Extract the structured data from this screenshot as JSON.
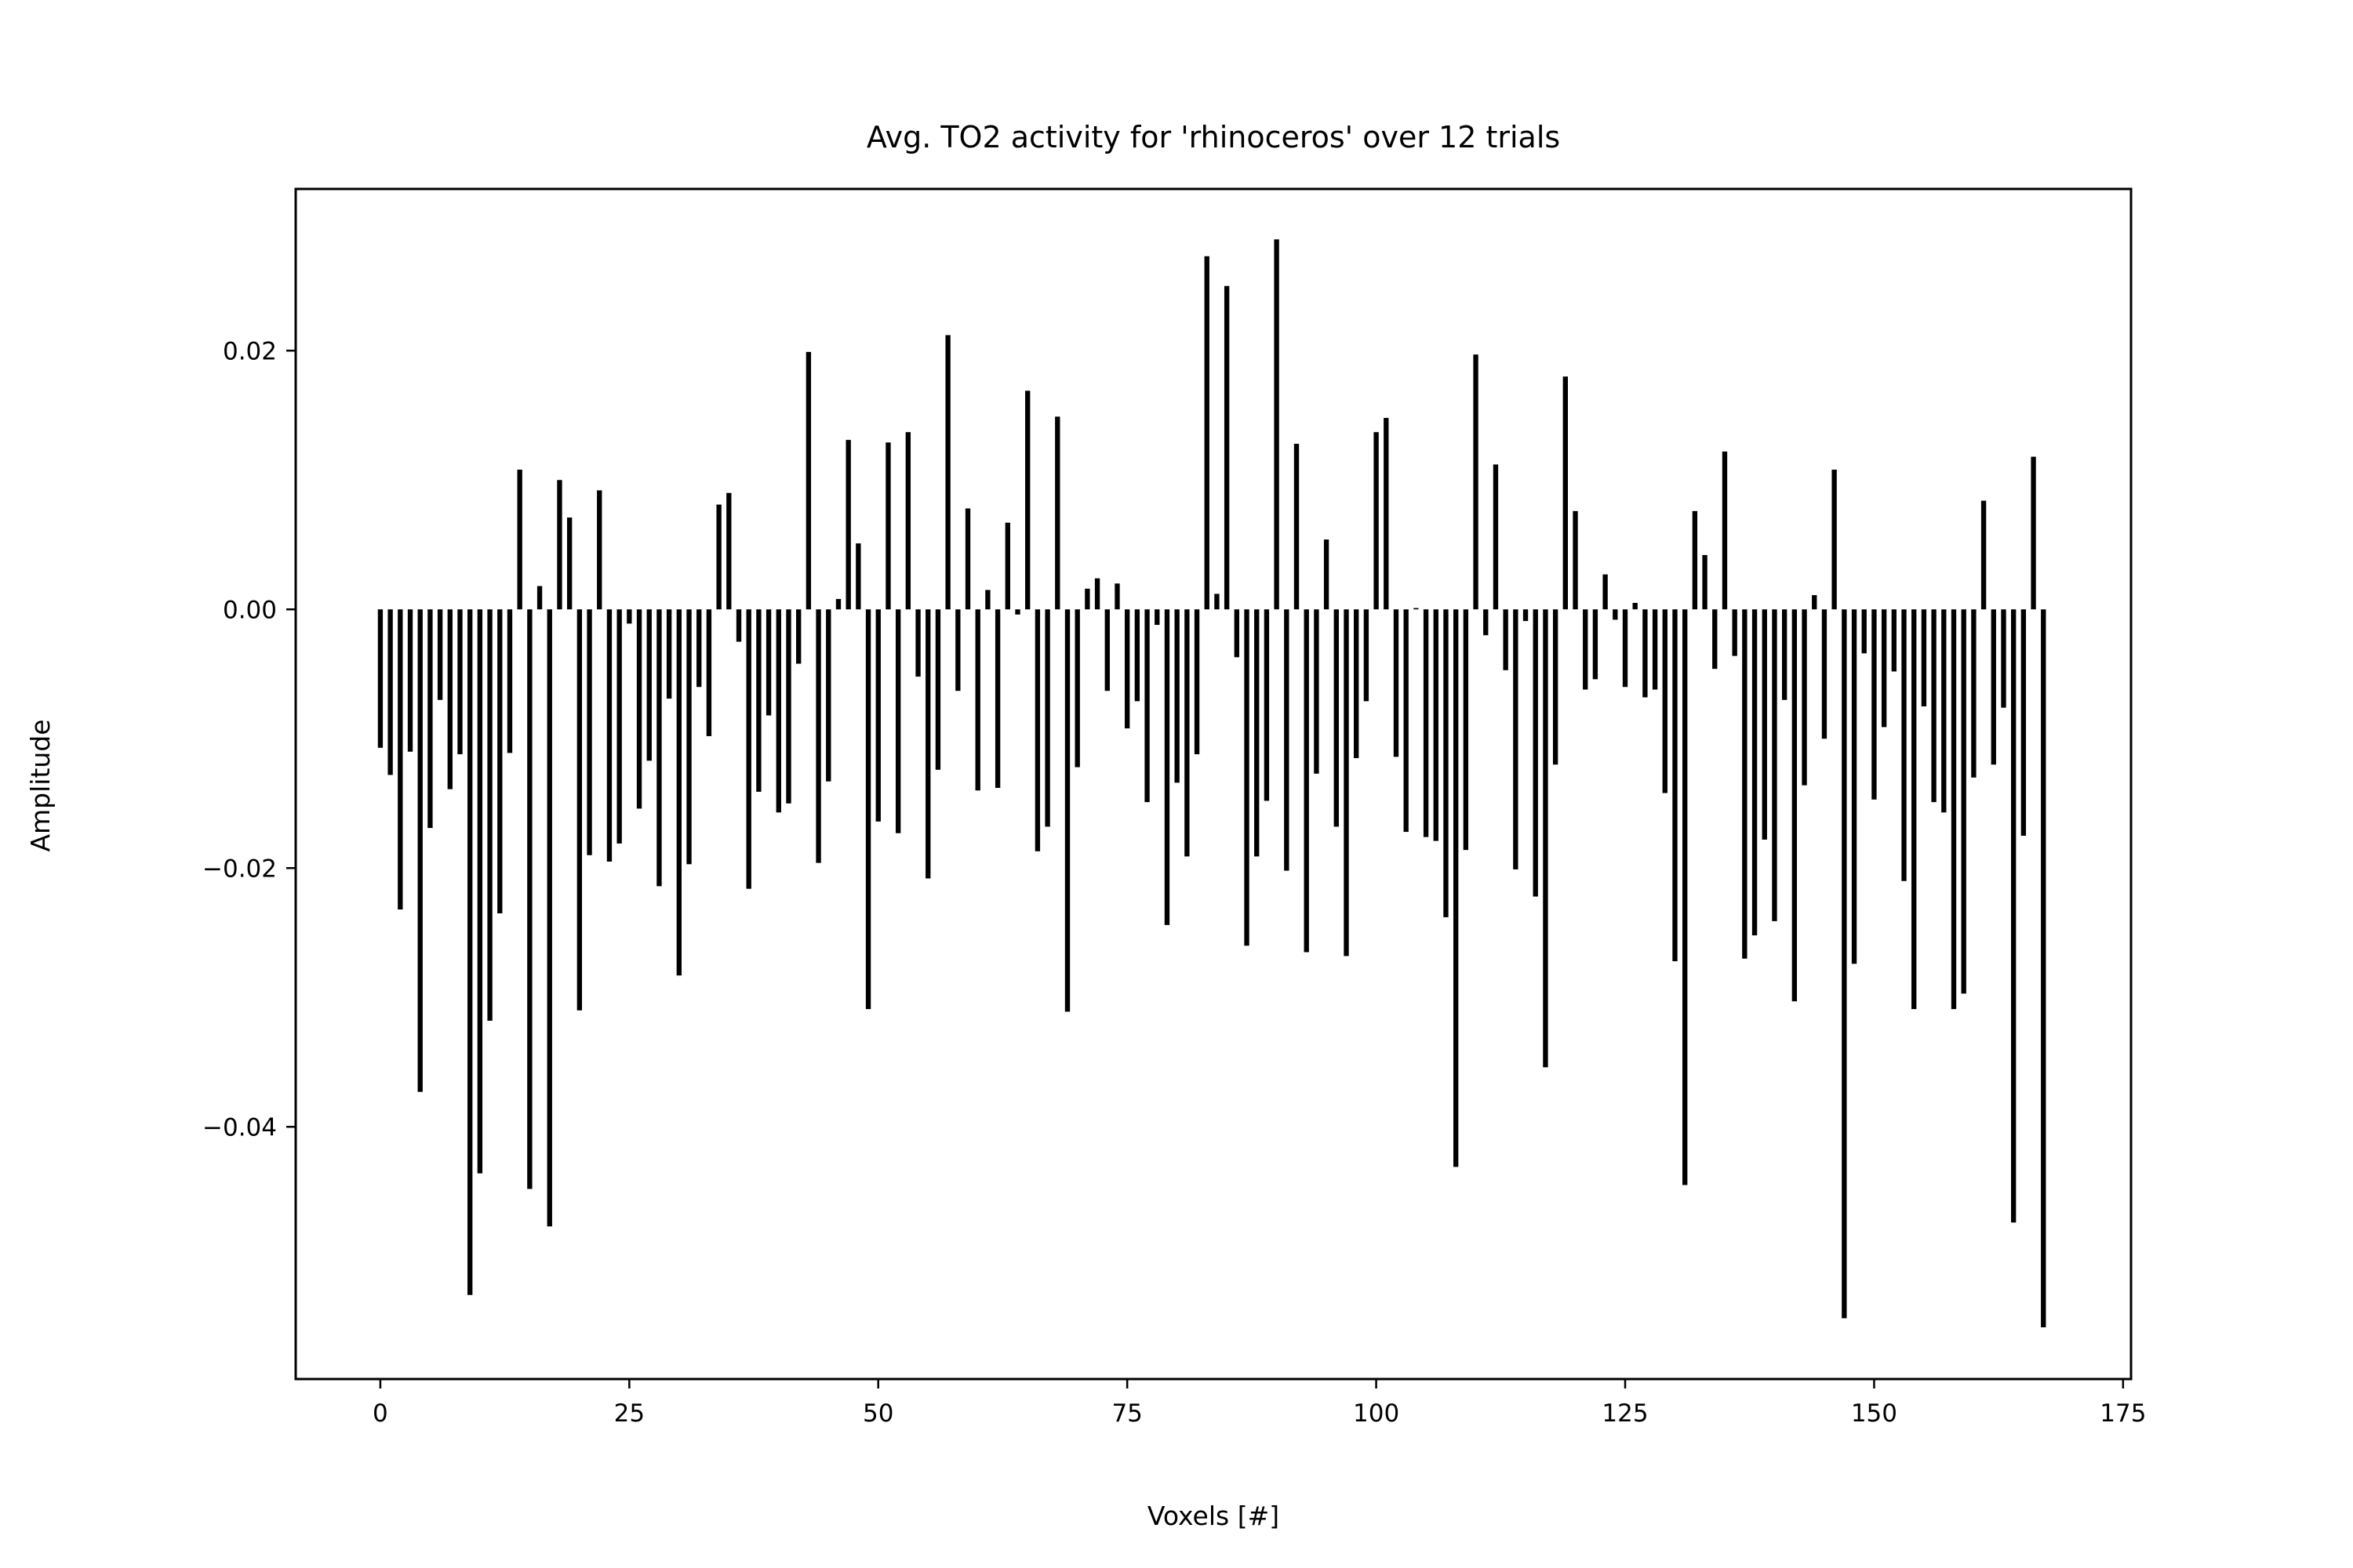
{
  "chart_data": {
    "type": "bar",
    "title": "Avg. TO2 activity for 'rhinoceros' over 12 trials",
    "xlabel": "Voxels [#]",
    "ylabel": "Amplitude",
    "xlim": [
      -8.5,
      175.8
    ],
    "ylim": [
      -0.0595,
      0.0325
    ],
    "xticks": [
      0,
      25,
      50,
      75,
      100,
      125,
      150,
      175
    ],
    "xtick_labels": [
      "0",
      "25",
      "50",
      "75",
      "100",
      "125",
      "150",
      "175"
    ],
    "yticks": [
      0.02,
      0.0,
      -0.02,
      -0.04
    ],
    "ytick_labels": [
      "0.02",
      "0.00",
      "−0.02",
      "−0.04"
    ],
    "bar_color": "#000000",
    "bar_width": 0.5,
    "grid": false,
    "legend": "none",
    "x": [
      0,
      1,
      2,
      3,
      4,
      5,
      6,
      7,
      8,
      9,
      10,
      11,
      12,
      13,
      14,
      15,
      16,
      17,
      18,
      19,
      20,
      21,
      22,
      23,
      24,
      25,
      26,
      27,
      28,
      29,
      30,
      31,
      32,
      33,
      34,
      35,
      36,
      37,
      38,
      39,
      40,
      41,
      42,
      43,
      44,
      45,
      46,
      47,
      48,
      49,
      50,
      51,
      52,
      53,
      54,
      55,
      56,
      57,
      58,
      59,
      60,
      61,
      62,
      63,
      64,
      65,
      66,
      67,
      68,
      69,
      70,
      71,
      72,
      73,
      74,
      75,
      76,
      77,
      78,
      79,
      80,
      81,
      82,
      83,
      84,
      85,
      86,
      87,
      88,
      89,
      90,
      91,
      92,
      93,
      94,
      95,
      96,
      97,
      98,
      99,
      100,
      101,
      102,
      103,
      104,
      105,
      106,
      107,
      108,
      109,
      110,
      111,
      112,
      113,
      114,
      115,
      116,
      117,
      118,
      119,
      120,
      121,
      122,
      123,
      124,
      125,
      126,
      127,
      128,
      129,
      130,
      131,
      132,
      133,
      134,
      135,
      136,
      137,
      138,
      139,
      140,
      141,
      142,
      143,
      144,
      145,
      146,
      147,
      148,
      149,
      150,
      151,
      152,
      153,
      154,
      155,
      156,
      157,
      158,
      159,
      160,
      161,
      162,
      163,
      164,
      165,
      166,
      167
    ],
    "values": [
      -0.0107,
      -0.0128,
      -0.0232,
      -0.011,
      -0.0373,
      -0.0169,
      -0.007,
      -0.0139,
      -0.0112,
      -0.053,
      -0.0436,
      -0.0318,
      -0.0235,
      -0.0111,
      0.0108,
      -0.0448,
      0.0018,
      -0.0477,
      0.01,
      0.0071,
      -0.031,
      -0.019,
      0.0092,
      -0.0195,
      -0.0181,
      -0.0011,
      -0.0154,
      -0.0117,
      -0.0214,
      -0.0069,
      -0.0283,
      -0.0197,
      -0.006,
      -0.0098,
      0.0081,
      0.009,
      -0.0025,
      -0.0216,
      -0.0141,
      -0.0082,
      -0.0157,
      -0.015,
      -0.0042,
      0.0199,
      -0.0196,
      -0.0133,
      0.0008,
      0.0131,
      0.0051,
      -0.0309,
      -0.0164,
      0.0129,
      -0.0173,
      0.0137,
      -0.0052,
      -0.0208,
      -0.0124,
      0.0212,
      -0.0063,
      0.0078,
      -0.014,
      0.0015,
      -0.0138,
      0.0067,
      -0.0004,
      0.0169,
      -0.0187,
      -0.0168,
      0.0149,
      -0.0311,
      -0.0122,
      0.0016,
      0.0024,
      -0.0063,
      0.002,
      -0.0092,
      -0.0071,
      -0.0149,
      -0.0012,
      -0.0244,
      -0.0134,
      -0.0191,
      -0.0112,
      0.0273,
      0.0012,
      0.025,
      -0.0037,
      -0.026,
      -0.0191,
      -0.0148,
      0.0286,
      -0.0202,
      0.0128,
      -0.0265,
      -0.0127,
      0.0054,
      -0.0168,
      -0.0268,
      -0.0115,
      -0.0071,
      0.0137,
      0.0148,
      -0.0114,
      -0.0172,
      0.0001,
      -0.0176,
      -0.0179,
      -0.0238,
      -0.0431,
      -0.0186,
      0.0197,
      -0.002,
      0.0112,
      -0.0047,
      -0.0201,
      -0.0009,
      -0.0222,
      -0.0354,
      -0.012,
      0.018,
      0.0076,
      -0.0062,
      -0.0054,
      0.0027,
      -0.0008,
      -0.006,
      0.0005,
      -0.0068,
      -0.0062,
      -0.0142,
      -0.0272,
      -0.0445,
      0.0076,
      0.0042,
      -0.0046,
      0.0122,
      -0.0036,
      -0.027,
      -0.0252,
      -0.0178,
      -0.0241,
      -0.007,
      -0.0303,
      -0.0136,
      0.0011,
      -0.01,
      0.0108,
      -0.0548,
      -0.0274,
      -0.0034,
      -0.0147,
      -0.0091,
      -0.0048,
      -0.021,
      -0.0309,
      -0.0075,
      -0.0149,
      -0.0157,
      -0.0309,
      -0.0297,
      -0.013,
      0.0084,
      -0.012,
      -0.0076,
      -0.0474,
      -0.0175,
      0.0118,
      -0.0555
    ]
  }
}
